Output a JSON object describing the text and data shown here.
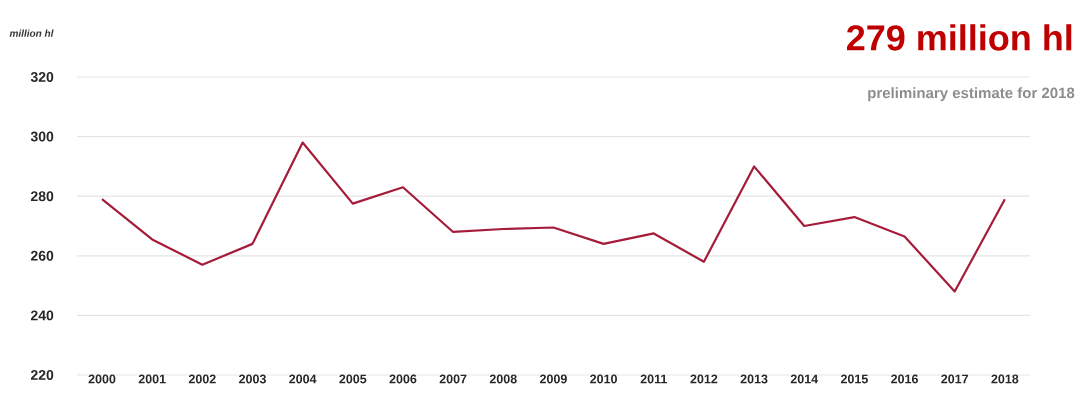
{
  "chart_data": {
    "type": "line",
    "title": "279 million hl",
    "subtitle": "preliminary estimate for 2018",
    "ylabel": "million hl",
    "categories": [
      "2000",
      "2001",
      "2002",
      "2003",
      "2004",
      "2005",
      "2006",
      "2007",
      "2008",
      "2009",
      "2010",
      "2011",
      "2012",
      "2013",
      "2014",
      "2015",
      "2016",
      "2017",
      "2018"
    ],
    "values": [
      279,
      265.5,
      257,
      264,
      298,
      277.5,
      283,
      268,
      269,
      269.5,
      264,
      267.5,
      258,
      290,
      270,
      273,
      266.5,
      248,
      279
    ],
    "color": "#a51c3a",
    "ylim": [
      220,
      320
    ],
    "yticks": [
      220,
      240,
      260,
      280,
      300,
      320
    ],
    "grid": "y"
  }
}
